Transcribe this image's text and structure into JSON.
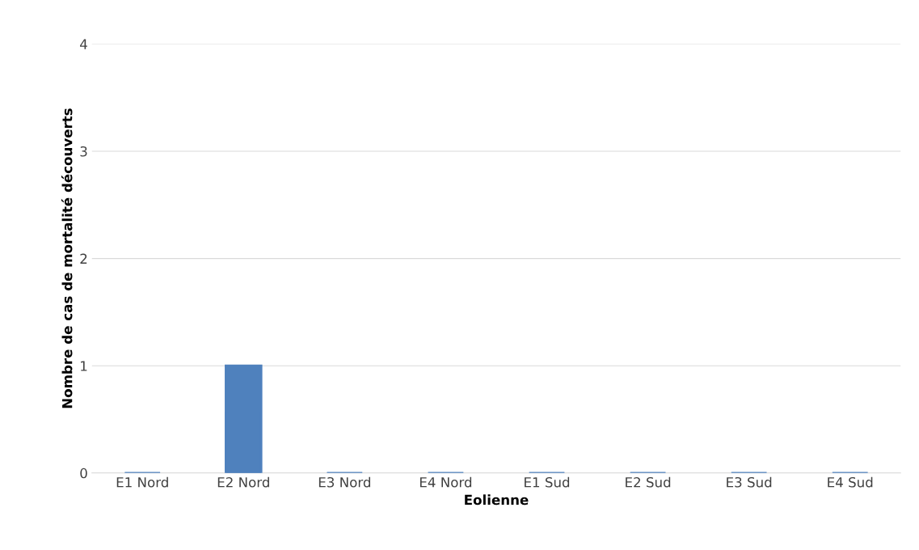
{
  "chart_data": {
    "type": "bar",
    "xlabel": "Eolienne",
    "ylabel": "Nombre de cas de mortalité découverts",
    "categories": [
      "E1 Nord",
      "E2 Nord",
      "E3 Nord",
      "E4 Nord",
      "E1 Sud",
      "E2 Sud",
      "E3 Sud",
      "E4 Sud"
    ],
    "values": [
      0,
      1,
      0,
      0,
      0,
      0,
      0,
      0
    ],
    "color": "#4f81bd",
    "ylim": [
      0,
      4
    ],
    "yticks": [
      0,
      1,
      2,
      3,
      4
    ],
    "grid": "y",
    "legend": false
  }
}
